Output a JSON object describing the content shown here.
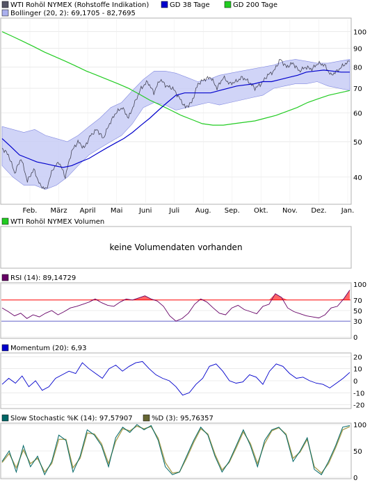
{
  "chart_data": [
    {
      "type": "line",
      "panel": "price",
      "legend": [
        {
          "label": "WTI Rohöl NYMEX (Rohstoffe Indikation)",
          "color": "#555566"
        },
        {
          "label": "GD 38 Tage",
          "color": "#0000cc"
        },
        {
          "label": "GD 200 Tage",
          "color": "#22cc22"
        },
        {
          "label": "Bollinger (20, 2): 69,1705 - 82,7695",
          "color": "#aab0ee"
        }
      ],
      "x_labels": [
        "Feb.",
        "März",
        "April",
        "Mai",
        "Juni",
        "Juli",
        "Aug.",
        "Sep.",
        "Okt.",
        "Nov.",
        "Dez.",
        "Jan."
      ],
      "y_ticks": [
        40,
        50,
        60,
        70,
        80,
        90,
        100
      ],
      "y_scale": "log",
      "ylim": [
        34,
        108
      ],
      "price": [
        48,
        46,
        41,
        45,
        39,
        42,
        38,
        37,
        42,
        44,
        40,
        47,
        50,
        48,
        52,
        54,
        51,
        56,
        60,
        62,
        58,
        64,
        70,
        73,
        68,
        74,
        71,
        70,
        66,
        62,
        64,
        72,
        74,
        75,
        70,
        75,
        72,
        73,
        75,
        73,
        70,
        72,
        76,
        78,
        84,
        80,
        82,
        78,
        80,
        79,
        82,
        81,
        76,
        78,
        81,
        83
      ],
      "ma38": [
        51,
        48.5,
        46,
        45,
        44,
        43.5,
        43,
        42.5,
        43,
        44,
        45,
        46.5,
        48,
        49.5,
        51,
        53,
        55.5,
        58,
        61,
        64,
        67,
        68,
        68,
        68,
        68,
        69,
        70,
        71,
        71.5,
        72,
        73,
        73,
        74,
        75,
        76,
        77.5,
        78,
        78.5,
        78,
        77.5,
        77.5
      ],
      "ma200": [
        100,
        97,
        94,
        91,
        88,
        85.5,
        83,
        80.5,
        78,
        76,
        74,
        72,
        70,
        67.5,
        65,
        63,
        61,
        59,
        57.5,
        56,
        55.5,
        55.5,
        56,
        56.5,
        57,
        58,
        59,
        60.5,
        62,
        64,
        65.5,
        67,
        68,
        69
      ],
      "bollinger_upper": [
        55,
        54,
        53,
        54,
        52,
        51,
        50,
        52,
        55,
        58,
        62,
        64,
        69,
        74,
        78,
        78,
        77,
        75,
        73,
        74,
        76,
        77,
        78,
        79,
        80,
        81,
        83,
        84,
        83,
        82,
        82,
        83,
        84
      ],
      "bollinger_lower": [
        43,
        40,
        38,
        38,
        37,
        38,
        40,
        43,
        46,
        48,
        50,
        52,
        56,
        62,
        64,
        63,
        61,
        62,
        63,
        64,
        63,
        64,
        65,
        66,
        67,
        70,
        71,
        72,
        72,
        73,
        71,
        70,
        69
      ]
    },
    {
      "type": "bar",
      "panel": "volume",
      "legend": [
        {
          "label": "WTI Rohöl NYMEX Volumen",
          "color": "#22cc22"
        }
      ],
      "message": "keine Volumendaten vorhanden"
    },
    {
      "type": "line",
      "panel": "rsi",
      "legend": [
        {
          "label": "RSI (14): 89,14729",
          "color": "#660066"
        }
      ],
      "y_ticks": [
        0,
        30,
        50,
        70,
        100
      ],
      "ylim": [
        0,
        100
      ],
      "reference_lines": [
        {
          "value": 70,
          "color": "#ff0000"
        },
        {
          "value": 30,
          "color": "#6666cc"
        }
      ],
      "values": [
        55,
        48,
        40,
        45,
        35,
        42,
        38,
        45,
        50,
        42,
        48,
        55,
        58,
        62,
        66,
        72,
        65,
        60,
        58,
        66,
        72,
        70,
        74,
        78,
        72,
        68,
        58,
        40,
        30,
        35,
        45,
        62,
        72,
        66,
        55,
        45,
        42,
        55,
        60,
        52,
        48,
        44,
        58,
        62,
        82,
        75,
        55,
        48,
        44,
        40,
        38,
        36,
        42,
        55,
        58,
        72,
        89
      ]
    },
    {
      "type": "line",
      "panel": "momentum",
      "legend": [
        {
          "label": "Momentum (20): 6,93",
          "color": "#0000cc"
        }
      ],
      "y_ticks": [
        -20,
        -10,
        0,
        10,
        20
      ],
      "ylim": [
        -22,
        22
      ],
      "values": [
        -3,
        2,
        -2,
        4,
        -5,
        0,
        -8,
        -5,
        2,
        5,
        8,
        6,
        15,
        10,
        6,
        2,
        10,
        13,
        8,
        12,
        15,
        16,
        10,
        5,
        2,
        0,
        -5,
        -12,
        -10,
        -3,
        2,
        12,
        14,
        8,
        0,
        -2,
        -1,
        5,
        3,
        -3,
        8,
        14,
        12,
        6,
        2,
        3,
        0,
        -2,
        -3,
        -6,
        -2,
        2,
        7
      ]
    },
    {
      "type": "line",
      "panel": "stochastic",
      "legend": [
        {
          "label": "Slow Stochastic %K (14): 97,57907",
          "color": "#006666"
        },
        {
          "label": "%D (3): 95,76357",
          "color": "#666633"
        }
      ],
      "y_ticks": [
        0,
        50,
        100
      ],
      "ylim": [
        0,
        100
      ],
      "k": [
        30,
        50,
        10,
        60,
        20,
        40,
        5,
        30,
        80,
        70,
        10,
        40,
        90,
        80,
        60,
        20,
        75,
        95,
        85,
        100,
        90,
        98,
        70,
        20,
        5,
        10,
        40,
        70,
        95,
        80,
        40,
        10,
        30,
        60,
        90,
        60,
        20,
        70,
        90,
        95,
        80,
        30,
        50,
        75,
        15,
        5,
        30,
        60,
        95,
        98
      ],
      "d": [
        28,
        45,
        18,
        52,
        26,
        36,
        10,
        26,
        72,
        72,
        18,
        36,
        84,
        82,
        64,
        26,
        68,
        92,
        88,
        97,
        92,
        96,
        74,
        28,
        8,
        10,
        36,
        66,
        92,
        82,
        44,
        14,
        28,
        56,
        86,
        64,
        26,
        64,
        88,
        94,
        82,
        36,
        48,
        72,
        20,
        8,
        26,
        56,
        90,
        96
      ]
    }
  ]
}
